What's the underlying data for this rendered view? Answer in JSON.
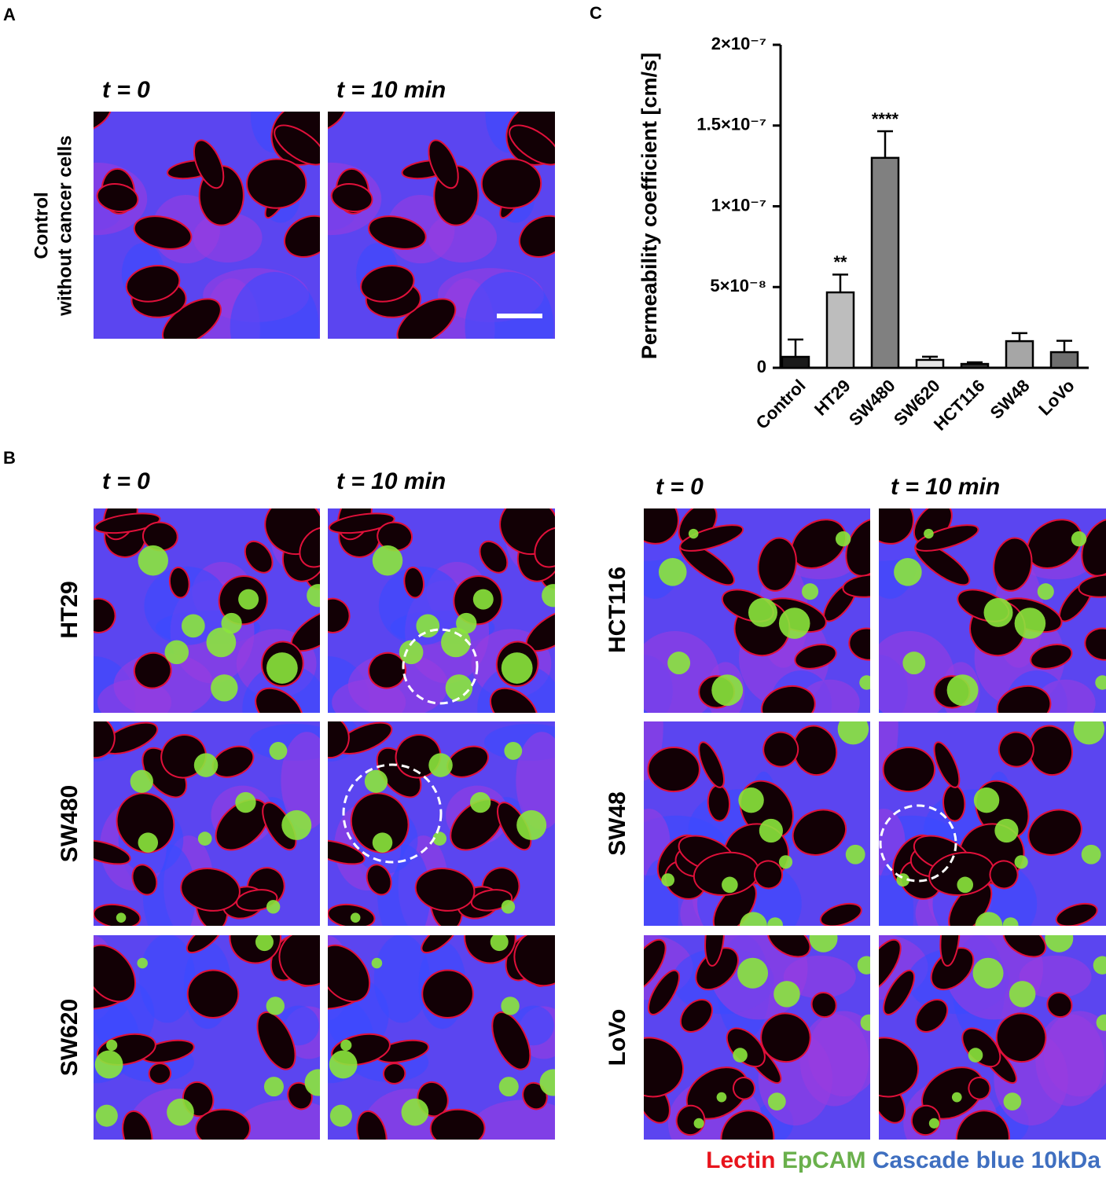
{
  "panels": {
    "a": {
      "letter": "A",
      "time_labels": [
        "t = 0",
        "t = 10 min"
      ],
      "row_label": [
        "Control",
        "without cancer cells"
      ]
    },
    "b": {
      "letter": "B",
      "left_time_labels": [
        "t = 0",
        "t = 10 min"
      ],
      "right_time_labels": [
        "t = 0",
        "t = 10 min"
      ],
      "left_rows": [
        "HT29",
        "SW480",
        "SW620"
      ],
      "right_rows": [
        "HCT116",
        "SW48",
        "LoVo"
      ]
    },
    "c": {
      "letter": "C"
    }
  },
  "legend": [
    {
      "text": "Lectin",
      "color": "#e8141c"
    },
    {
      "text": "EpCAM",
      "color": "#6ab04c"
    },
    {
      "text": "Cascade blue 10kDa",
      "color": "#3f6fc0"
    }
  ],
  "chart_data": {
    "type": "bar",
    "ylabel": "Permeability coefficient [cm/s]",
    "categories": [
      "Control",
      "HT29",
      "SW480",
      "SW620",
      "HCT116",
      "SW48",
      "LoVo"
    ],
    "values": [
      6.8e-09,
      4.67e-08,
      1.3e-07,
      4.9e-09,
      2.4e-09,
      1.65e-08,
      9.7e-09
    ],
    "errors": [
      1.07e-08,
      1.1e-08,
      1.65e-08,
      2e-09,
      1e-09,
      5e-09,
      7e-09
    ],
    "colors": [
      "#1a1a1a",
      "#bdbdbd",
      "#808080",
      "#e6e6e6",
      "#333333",
      "#a6a6a6",
      "#6e6e6e"
    ],
    "ylim": [
      0,
      2e-07
    ],
    "yticks": [
      0,
      {
        "value": 5e-08,
        "label": "5×10⁻⁸"
      },
      {
        "value": 1e-07,
        "label": "1×10⁻⁷"
      },
      {
        "value": 1.5e-07,
        "label": "1.5×10⁻⁷"
      },
      {
        "value": 2e-07,
        "label": "2×10⁻⁷"
      }
    ],
    "annotations": [
      {
        "x": "HT29",
        "text": "**"
      },
      {
        "x": "SW480",
        "text": "****"
      }
    ]
  }
}
